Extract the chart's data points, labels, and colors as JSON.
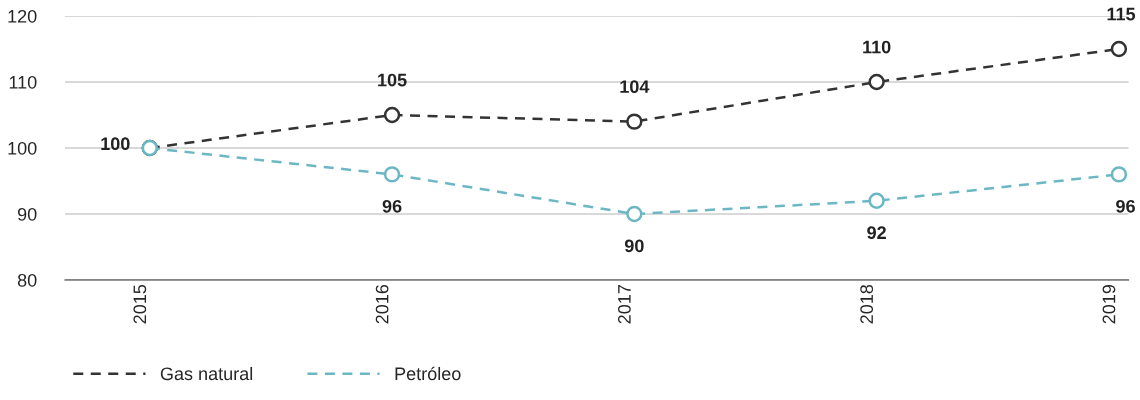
{
  "chart_data": {
    "type": "line",
    "categories": [
      "2015",
      "2016",
      "2017",
      "2018",
      "2019"
    ],
    "series": [
      {
        "name": "Gas natural",
        "color": "#333333",
        "values": [
          100,
          105,
          104,
          110,
          115
        ],
        "value_labels": [
          "100",
          "105",
          "104",
          "110",
          "115"
        ]
      },
      {
        "name": "Petróleo",
        "color": "#6bb8c4",
        "values": [
          100,
          96,
          90,
          92,
          96
        ],
        "value_labels": [
          null,
          "96",
          "90",
          "92",
          "96"
        ]
      }
    ],
    "ylim": [
      80,
      120
    ],
    "yticks": [
      80,
      90,
      100,
      110,
      120
    ],
    "grid": "y",
    "legend": "bottom left",
    "marker": "circle",
    "line_style": "dashed"
  }
}
